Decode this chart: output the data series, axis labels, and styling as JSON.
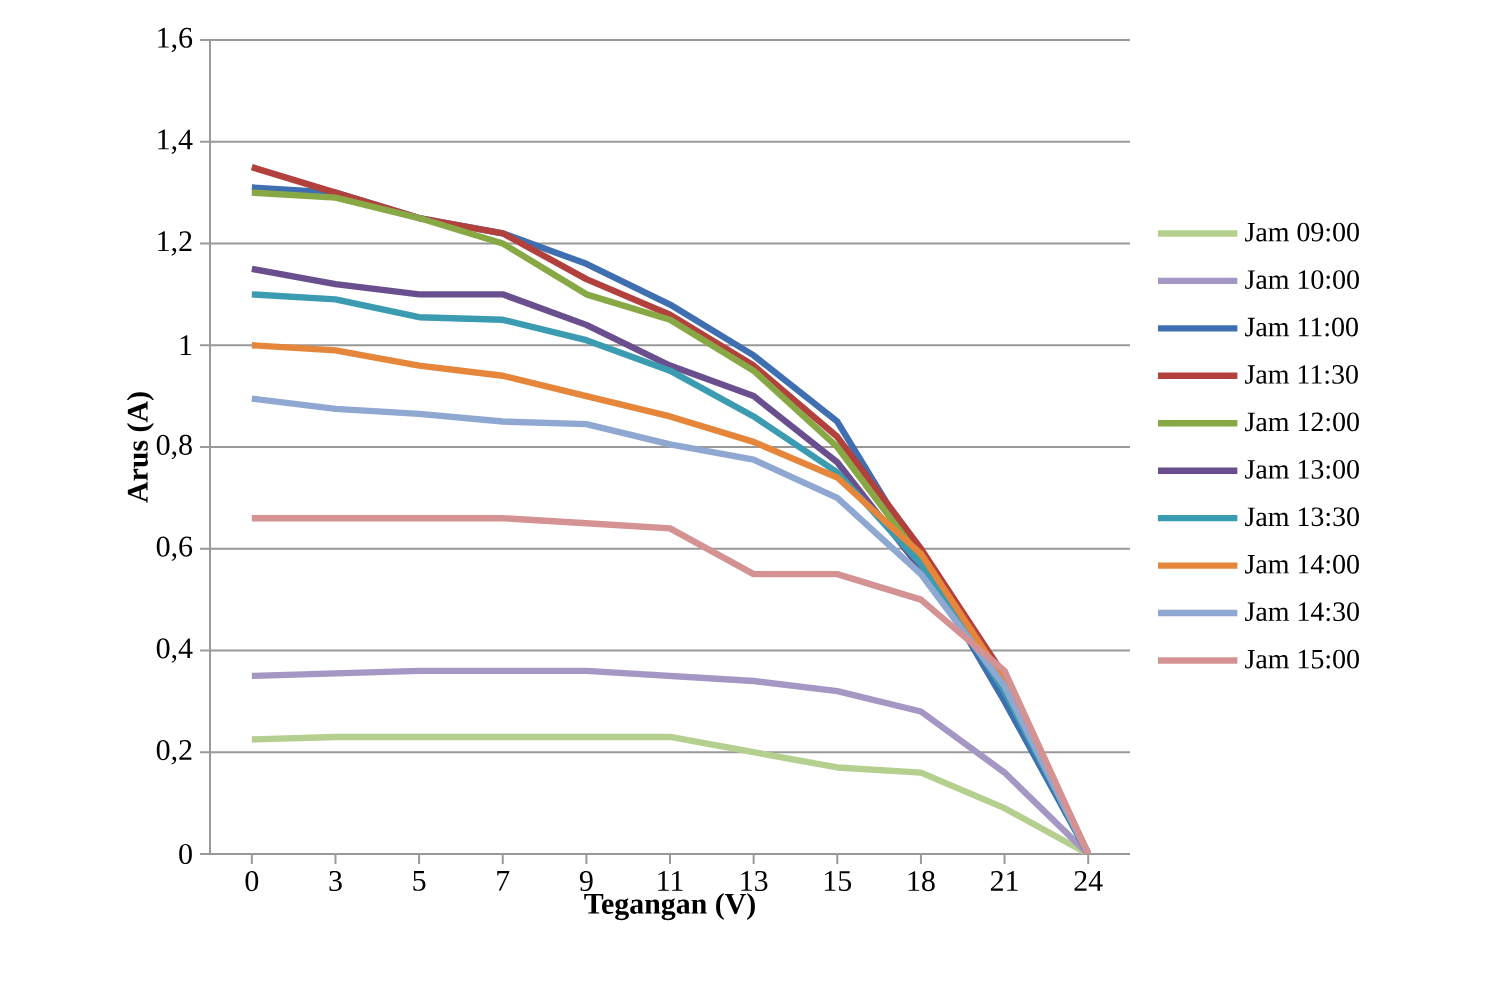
{
  "chart_data": {
    "type": "line",
    "xlabel": "Tegangan (V)",
    "ylabel": "Arus (A)",
    "categories": [
      "0",
      "3",
      "5",
      "7",
      "9",
      "11",
      "13",
      "15",
      "18",
      "21",
      "24"
    ],
    "ylim": [
      0,
      1.6
    ],
    "yticks": [
      0,
      {
        "value": 0.2,
        "label": "0,2"
      },
      {
        "value": 0.4,
        "label": "0,4"
      },
      {
        "value": 0.6,
        "label": "0,6"
      },
      {
        "value": 0.8,
        "label": "0,8"
      },
      1,
      {
        "value": 1.2,
        "label": "1,2"
      },
      {
        "value": 1.4,
        "label": "1,4"
      },
      {
        "value": 1.6,
        "label": "1,6"
      }
    ],
    "grid": "y",
    "legend": "right",
    "marker": "none",
    "line_style": "solid",
    "series": [
      {
        "name": "Jam 09:00",
        "color": "#b5cf8f",
        "values": [
          0.225,
          0.23,
          0.23,
          0.23,
          0.23,
          0.23,
          0.2,
          0.17,
          0.16,
          0.09,
          0
        ]
      },
      {
        "name": "Jam 10:00",
        "color": "#a597c4",
        "values": [
          0.35,
          0.355,
          0.36,
          0.36,
          0.36,
          0.35,
          0.34,
          0.32,
          0.28,
          0.16,
          0
        ]
      },
      {
        "name": "Jam 11:00",
        "color": "#3f6fb0",
        "values": [
          1.31,
          1.3,
          1.25,
          1.22,
          1.16,
          1.08,
          0.98,
          0.85,
          0.58,
          0.3,
          0
        ]
      },
      {
        "name": "Jam 11:30",
        "color": "#b2403c",
        "values": [
          1.35,
          1.3,
          1.25,
          1.22,
          1.13,
          1.06,
          0.96,
          0.82,
          0.6,
          0.35,
          0
        ]
      },
      {
        "name": "Jam 12:00",
        "color": "#88a845",
        "values": [
          1.3,
          1.29,
          1.25,
          1.2,
          1.1,
          1.05,
          0.95,
          0.8,
          0.58,
          0.34,
          0
        ]
      },
      {
        "name": "Jam 13:00",
        "color": "#6a4f8f",
        "values": [
          1.15,
          1.12,
          1.1,
          1.1,
          1.04,
          0.96,
          0.9,
          0.77,
          0.56,
          0.33,
          0
        ]
      },
      {
        "name": "Jam 13:30",
        "color": "#3b9bb0",
        "values": [
          1.1,
          1.09,
          1.055,
          1.05,
          1.01,
          0.95,
          0.86,
          0.75,
          0.57,
          0.32,
          0
        ]
      },
      {
        "name": "Jam 14:00",
        "color": "#e5863a",
        "values": [
          1.0,
          0.99,
          0.96,
          0.94,
          0.9,
          0.86,
          0.81,
          0.74,
          0.59,
          0.34,
          0
        ]
      },
      {
        "name": "Jam 14:30",
        "color": "#8fa8d2",
        "values": [
          0.895,
          0.875,
          0.865,
          0.85,
          0.845,
          0.805,
          0.775,
          0.7,
          0.55,
          0.33,
          0
        ]
      },
      {
        "name": "Jam 15:00",
        "color": "#d49292",
        "values": [
          0.66,
          0.66,
          0.66,
          0.66,
          0.65,
          0.64,
          0.55,
          0.55,
          0.5,
          0.36,
          0
        ]
      }
    ]
  }
}
